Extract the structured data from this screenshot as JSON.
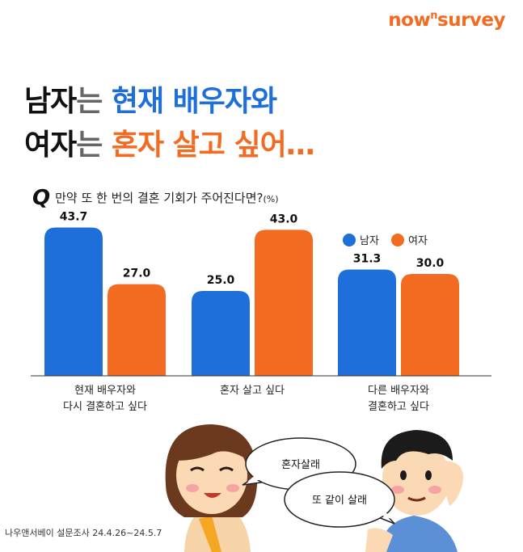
{
  "logo": {
    "part1": "now",
    "sup": "n",
    "part2": "survey"
  },
  "headline": {
    "line1": {
      "a": "남자",
      "b": "는 ",
      "c": "현재 배우자와"
    },
    "line2": {
      "a": "여자",
      "b": "는 ",
      "c": "혼자 살고 싶어…"
    }
  },
  "question": {
    "q": "Q",
    "text": "만약 또 한 번의 결혼 기회가 주어진다면?",
    "unit": "(%)"
  },
  "colors": {
    "male": "#1e6fd9",
    "female": "#f26b21"
  },
  "chart_data": {
    "type": "bar",
    "title": "",
    "xlabel": "",
    "ylabel": "",
    "ylim": [
      0,
      50
    ],
    "categories": [
      [
        "현재 배우자와",
        "다시 결혼하고 싶다"
      ],
      [
        "혼자 살고 싶다"
      ],
      [
        "다른 배우자와",
        "결혼하고 싶다"
      ]
    ],
    "series": [
      {
        "name": "남자",
        "values": [
          43.7,
          25.0,
          31.3
        ]
      },
      {
        "name": "여자",
        "values": [
          27.0,
          43.0,
          30.0
        ]
      }
    ],
    "legend": "top-right"
  },
  "illustration": {
    "bubble1": "혼자살래",
    "bubble2": "또 같이 살래"
  },
  "source": "나우앤서베이 설문조사 24.4.26~24.5.7"
}
